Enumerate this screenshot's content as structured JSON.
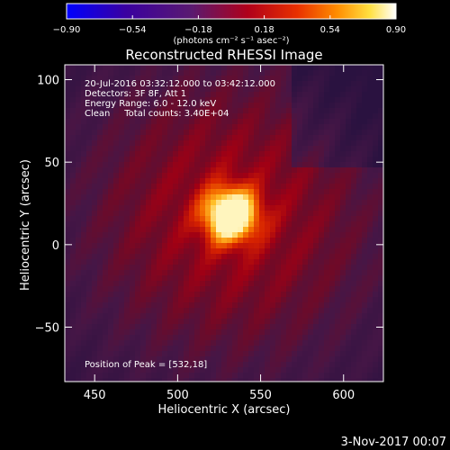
{
  "chart_data": {
    "type": "heatmap",
    "title": "Reconstructed RHESSI Image",
    "xlabel": "Heliocentric X (arcsec)",
    "ylabel": "Heliocentric Y (arcsec)",
    "xlim": [
      432,
      624
    ],
    "ylim": [
      -83,
      109
    ],
    "x_ticks": [
      450,
      500,
      550,
      600
    ],
    "y_ticks": [
      -50,
      0,
      50,
      100
    ],
    "x_tick_labels": [
      "450",
      "500",
      "550",
      "600"
    ],
    "y_tick_labels": [
      "−50",
      "0",
      "50",
      "100"
    ],
    "colorbar": {
      "min": -0.9,
      "max": 0.9,
      "ticks": [
        -0.9,
        -0.54,
        -0.18,
        0.18,
        0.54,
        0.9
      ],
      "tick_labels": [
        "−0.90",
        "−0.54",
        "−0.18",
        "0.18",
        "0.54",
        "0.90"
      ],
      "units_label": "(photons cm⁻² s⁻¹ asec⁻²)",
      "colormap": [
        "#0000ff",
        "#3a00a0",
        "#5a1a70",
        "#b0001a",
        "#e83000",
        "#ff8c00",
        "#ffe040",
        "#ffffff"
      ]
    },
    "peak": {
      "x": 532,
      "y": 18,
      "value": 0.9
    },
    "annotations": [
      "20-Jul-2016 03:32:12.000 to 03:42:12.000",
      "Detectors: 3F 8F, Att 1",
      "Energy Range: 6.0 - 12.0 keV",
      "Clean     Total counts: 3.40E+04"
    ],
    "peak_label": "Position of Peak = [532,18]"
  },
  "footer": {
    "date": "3-Nov-2017 00:07"
  }
}
